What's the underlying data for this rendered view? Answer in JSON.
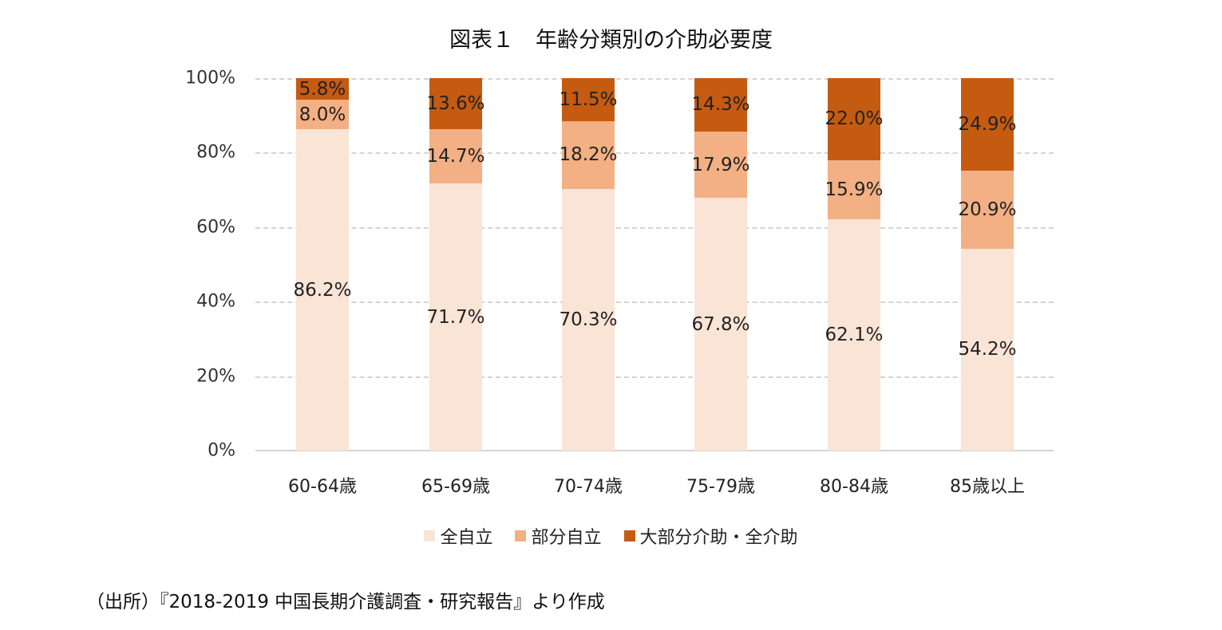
{
  "title": "図表１　年齢分類別の介助必要度",
  "source": "（出所）『2018-2019 中国長期介護調査・研究報告』より作成",
  "colors": {
    "full_independent": "#fae4d6",
    "partial_independent": "#f2b084",
    "assisted": "#c55a11"
  },
  "y_ticks": [
    "0%",
    "20%",
    "40%",
    "60%",
    "80%",
    "100%"
  ],
  "legend": [
    {
      "label": "全自立",
      "color": "#fae4d6"
    },
    {
      "label": "部分自立",
      "color": "#f2b084"
    },
    {
      "label": "大部分介助・全介助",
      "color": "#c55a11"
    }
  ],
  "chart_data": {
    "type": "bar",
    "stacked": true,
    "title": "図表１　年齢分類別の介助必要度",
    "xlabel": "",
    "ylabel": "",
    "ylim": [
      0,
      100
    ],
    "y_tick_labels": [
      "0%",
      "20%",
      "40%",
      "60%",
      "80%",
      "100%"
    ],
    "grid": true,
    "legend_position": "bottom",
    "categories": [
      "60-64歳",
      "65-69歳",
      "70-74歳",
      "75-79歳",
      "80-84歳",
      "85歳以上"
    ],
    "series": [
      {
        "name": "全自立",
        "color": "#fae4d6",
        "values": [
          86.2,
          71.7,
          70.3,
          67.8,
          62.1,
          54.2
        ],
        "labels": [
          "86.2%",
          "71.7%",
          "70.3%",
          "67.8%",
          "62.1%",
          "54.2%"
        ]
      },
      {
        "name": "部分自立",
        "color": "#f2b084",
        "values": [
          8.0,
          14.7,
          18.2,
          17.9,
          15.9,
          20.9
        ],
        "labels": [
          "8.0%",
          "14.7%",
          "18.2%",
          "17.9%",
          "15.9%",
          "20.9%"
        ]
      },
      {
        "name": "大部分介助・全介助",
        "color": "#c55a11",
        "values": [
          5.8,
          13.6,
          11.5,
          14.3,
          22.0,
          24.9
        ],
        "labels": [
          "5.8%",
          "13.6%",
          "11.5%",
          "14.3%",
          "22.0%",
          "24.9%"
        ]
      }
    ],
    "source": "（出所）『2018-2019 中国長期介護調査・研究報告』より作成"
  }
}
